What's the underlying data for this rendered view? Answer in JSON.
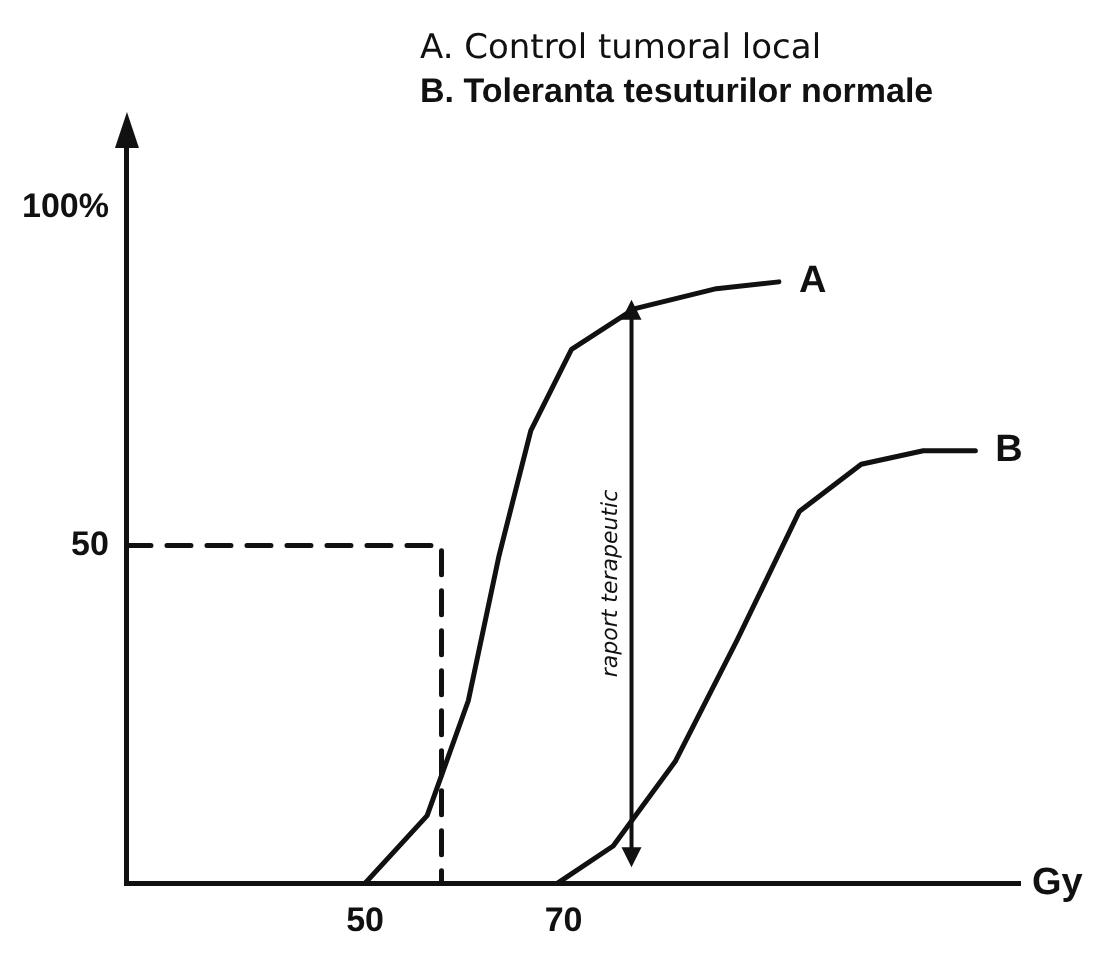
{
  "chart_data": {
    "type": "line",
    "title": "A. Control tumoral local",
    "subtitle": "B. Toleranta tesuturilor normale",
    "xlabel": "Gy",
    "xlim": [
      26,
      116
    ],
    "xticks": [
      50,
      70
    ],
    "ylim": [
      0,
      110
    ],
    "yticks": [
      50,
      {
        "value": 100,
        "label": "100%"
      }
    ],
    "grid": false,
    "legend": false,
    "marker": "none",
    "annotations": [
      "raport terapeutic"
    ],
    "series": [
      {
        "name": "A",
        "color": "#111111",
        "line_style": "solid",
        "x": [
          50,
          56.25,
          60.4,
          63.5,
          66.7,
          70.8,
          77.1,
          85.4,
          91.7
        ],
        "values": [
          0,
          10,
          27,
          48.5,
          67,
          79,
          85,
          88,
          89
        ]
      },
      {
        "name": "B",
        "color": "#111111",
        "line_style": "solid",
        "x": [
          69.4,
          75,
          81.25,
          87.5,
          93.75,
          100,
          106.25,
          111.5
        ],
        "values": [
          0,
          5.5,
          18,
          36,
          55,
          62,
          64,
          64
        ]
      },
      {
        "color": "#111111",
        "line_style": "dashed",
        "x": [
          26,
          57.7,
          57.7
        ],
        "values": [
          50,
          50,
          0
        ]
      }
    ]
  }
}
